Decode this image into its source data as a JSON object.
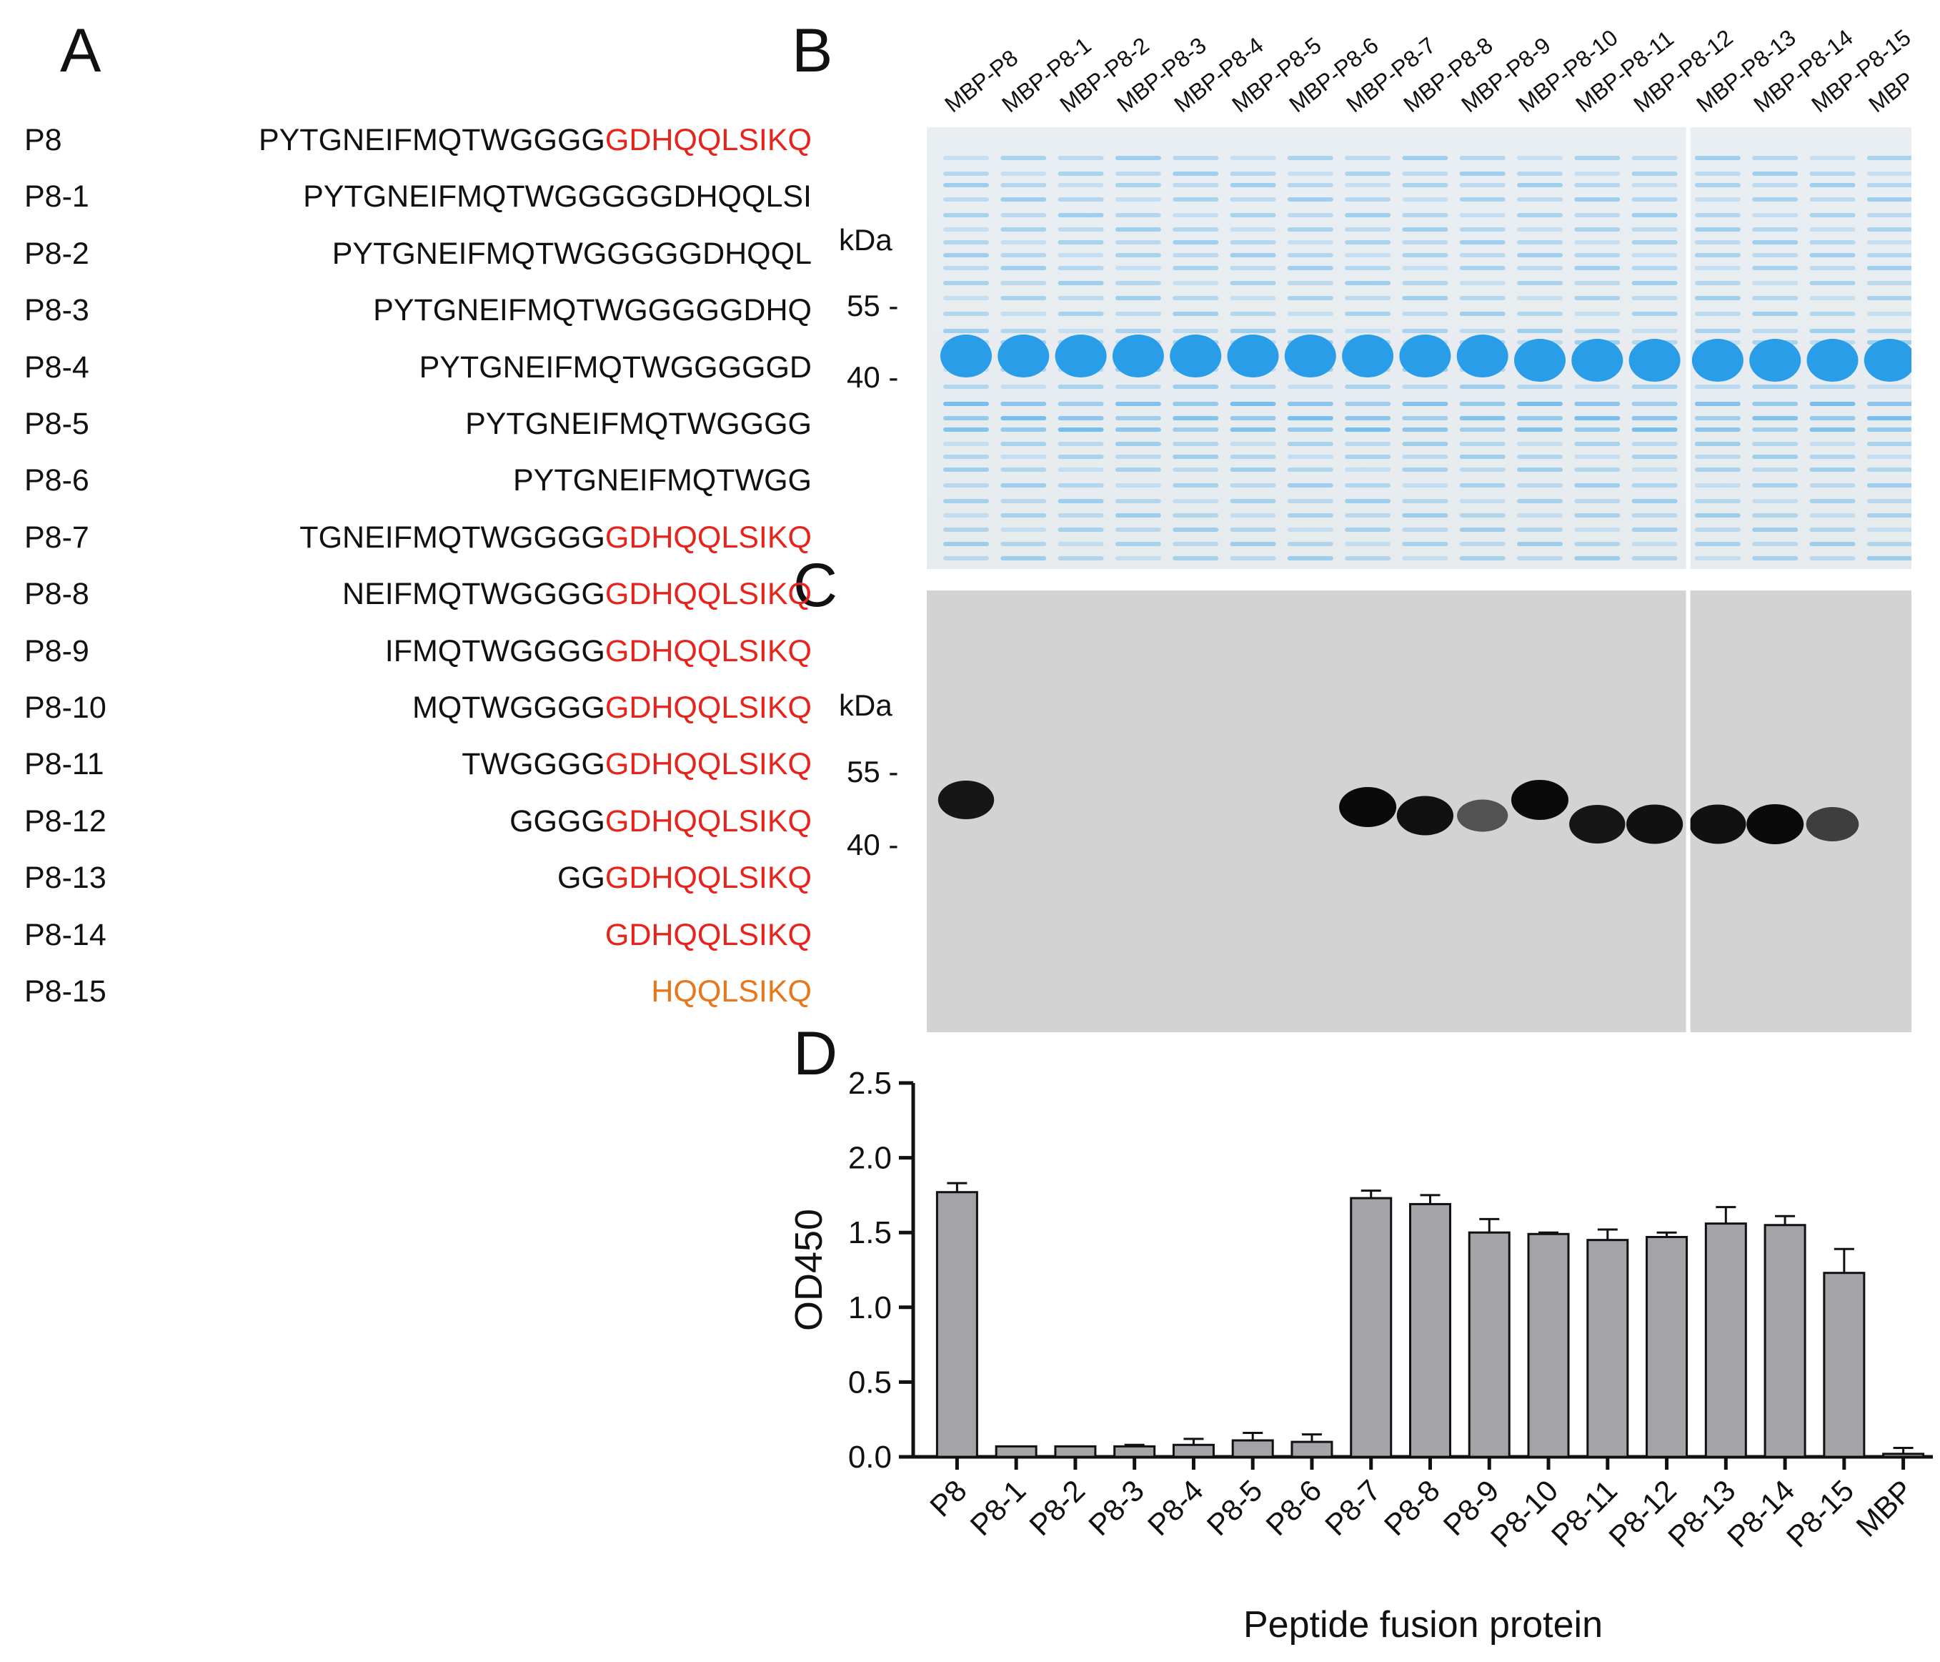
{
  "panels": {
    "a": "A",
    "b": "B",
    "c": "C",
    "d": "D"
  },
  "peptides": [
    {
      "name": "P8",
      "black": "PYTGNEIFMQTWGGGG",
      "red": "GDHQQLSIKQ",
      "orange": ""
    },
    {
      "name": "P8-1",
      "black": "PYTGNEIFMQTWGGGGGDHQQLSI",
      "red": "",
      "orange": ""
    },
    {
      "name": "P8-2",
      "black": "PYTGNEIFMQTWGGGGGDHQQL",
      "red": "",
      "orange": ""
    },
    {
      "name": "P8-3",
      "black": "PYTGNEIFMQTWGGGGGDHQ",
      "red": "",
      "orange": ""
    },
    {
      "name": "P8-4",
      "black": "PYTGNEIFMQTWGGGGGD",
      "red": "",
      "orange": ""
    },
    {
      "name": "P8-5",
      "black": "PYTGNEIFMQTWGGGG",
      "red": "",
      "orange": ""
    },
    {
      "name": "P8-6",
      "black": "PYTGNEIFMQTWGG",
      "red": "",
      "orange": ""
    },
    {
      "name": "P8-7",
      "black": "TGNEIFMQTWGGGG",
      "red": "GDHQQLSIKQ",
      "orange": ""
    },
    {
      "name": "P8-8",
      "black": "NEIFMQTWGGGG",
      "red": "GDHQQLSIKQ",
      "orange": ""
    },
    {
      "name": "P8-9",
      "black": "IFMQTWGGGG",
      "red": "GDHQQLSIKQ",
      "orange": ""
    },
    {
      "name": "P8-10",
      "black": "MQTWGGGG",
      "red": "GDHQQLSIKQ",
      "orange": ""
    },
    {
      "name": "P8-11",
      "black": "TWGGGG",
      "red": "GDHQQLSIKQ",
      "orange": ""
    },
    {
      "name": "P8-12",
      "black": "GGGG",
      "red": "GDHQQLSIKQ",
      "orange": ""
    },
    {
      "name": "P8-13",
      "black": "GG",
      "red": "GDHQQLSIKQ",
      "orange": ""
    },
    {
      "name": "P8-14",
      "black": "",
      "red": "GDHQQLSIKQ",
      "orange": ""
    },
    {
      "name": "P8-15",
      "black": "",
      "red": "",
      "orange": "HQQLSIKQ"
    }
  ],
  "gel": {
    "lanes": [
      "MBP-P8",
      "MBP-P8-1",
      "MBP-P8-2",
      "MBP-P8-3",
      "MBP-P8-4",
      "MBP-P8-5",
      "MBP-P8-6",
      "MBP-P8-7",
      "MBP-P8-8",
      "MBP-P8-9",
      "MBP-P8-10",
      "MBP-P8-11",
      "MBP-P8-12",
      "MBP-P8-13",
      "MBP-P8-14",
      "MBP-P8-15",
      "MBP"
    ],
    "kda": "kDa",
    "marker_55": "55 -",
    "marker_40": "40 -",
    "western_intensity": [
      0.9,
      0,
      0,
      0,
      0,
      0,
      0,
      1,
      0.95,
      0.45,
      1,
      0.9,
      0.95,
      0.95,
      1,
      0.6,
      0
    ],
    "colors": {
      "coomassie": "#2a9de8",
      "gel_bg": "#e7ecef",
      "blot_bg": "#d3d3d3",
      "band_dark": "#0a0a0a"
    }
  },
  "chart_data": {
    "type": "bar",
    "categories": [
      "P8",
      "P8-1",
      "P8-2",
      "P8-3",
      "P8-4",
      "P8-5",
      "P8-6",
      "P8-7",
      "P8-8",
      "P8-9",
      "P8-10",
      "P8-11",
      "P8-12",
      "P8-13",
      "P8-14",
      "P8-15",
      "MBP"
    ],
    "values": [
      1.77,
      0.07,
      0.07,
      0.07,
      0.08,
      0.11,
      0.1,
      1.73,
      1.69,
      1.5,
      1.49,
      1.45,
      1.47,
      1.56,
      1.55,
      1.23,
      0.02
    ],
    "errors": [
      0.06,
      0.0,
      0.0,
      0.01,
      0.04,
      0.05,
      0.05,
      0.05,
      0.06,
      0.09,
      0.01,
      0.07,
      0.03,
      0.11,
      0.06,
      0.16,
      0.04
    ],
    "xlabel": "Peptide fusion protein",
    "ylabel": "OD450",
    "ylim": [
      0,
      2.5
    ],
    "yticks": [
      "0.0",
      "0.5",
      "1.0",
      "1.5",
      "2.0",
      "2.5"
    ],
    "bar_color": "#a3a3a8",
    "grid": false
  }
}
